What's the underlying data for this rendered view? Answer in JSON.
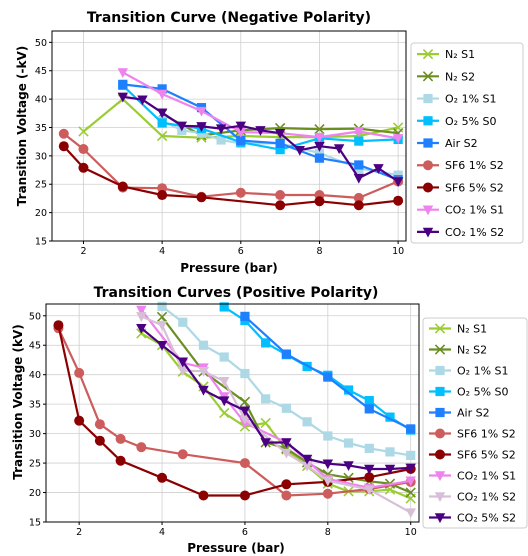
{
  "chart_data": [
    {
      "type": "line",
      "title": "Transition Curve (Negative Polarity)",
      "xlabel": "Pressure (bar)",
      "ylabel": "Transition Voltage (-kV)",
      "xlim": [
        1.2,
        10.2
      ],
      "ylim": [
        15,
        52
      ],
      "xticks": [
        2,
        4,
        6,
        8,
        10
      ],
      "yticks": [
        15,
        20,
        25,
        30,
        35,
        40,
        45,
        50
      ],
      "grid": true,
      "legend": "right-outside",
      "series": [
        {
          "name": "N₂ S1",
          "color": "#9acd32",
          "marker": "x",
          "x": [
            2,
            3,
            4,
            5,
            6,
            7,
            8,
            9,
            10
          ],
          "y": [
            34.3,
            40,
            33.5,
            33.2,
            33.5,
            33.3,
            33.3,
            33.5,
            35
          ]
        },
        {
          "name": "N₂ S2",
          "color": "#6b8e23",
          "marker": "x",
          "x": [
            4,
            5,
            6,
            7,
            8,
            9,
            10
          ],
          "y": [
            37.4,
            33.6,
            34.5,
            34.9,
            34.7,
            34.8,
            34
          ]
        },
        {
          "name": "O₂ 1% S1",
          "color": "#add8e6",
          "marker": "s",
          "x": [
            4,
            4.5,
            5,
            5.5,
            6,
            7,
            8,
            9,
            10
          ],
          "y": [
            36.2,
            34.5,
            34,
            32.8,
            32.2,
            32.2,
            30.5,
            27.8,
            26.6
          ]
        },
        {
          "name": "O₂ 5% S0",
          "color": "#00bfff",
          "marker": "s",
          "x": [
            3,
            4,
            5,
            6,
            7,
            8,
            9,
            10
          ],
          "y": [
            42.4,
            35.8,
            34.8,
            32.4,
            31.1,
            33.1,
            32.6,
            32.9
          ]
        },
        {
          "name": "Air S2",
          "color": "#1e7fff",
          "marker": "s",
          "x": [
            3,
            4,
            5,
            6,
            7,
            8,
            9,
            10
          ],
          "y": [
            42.6,
            41.8,
            38.5,
            32.7,
            32.2,
            29.6,
            28.4,
            25.8
          ]
        },
        {
          "name": "SF6 1% S2",
          "color": "#cd5c5c",
          "marker": "o",
          "x": [
            1.5,
            2,
            3,
            4,
            5,
            6,
            7,
            8,
            9,
            10
          ],
          "y": [
            33.9,
            31.2,
            24.4,
            24.3,
            22.8,
            23.5,
            23.1,
            23.1,
            22.6,
            25.5
          ]
        },
        {
          "name": "SF6 5% S2",
          "color": "#8b0000",
          "marker": "o",
          "x": [
            1.5,
            2,
            3,
            4,
            5,
            7,
            8,
            9,
            10
          ],
          "y": [
            31.7,
            27.9,
            24.6,
            23.1,
            22.7,
            21.3,
            22,
            21.3,
            22.1
          ]
        },
        {
          "name": "CO₂ 1% S1",
          "color": "#ee82ee",
          "marker": "v",
          "x": [
            3,
            4,
            5,
            6,
            7,
            8,
            9,
            10
          ],
          "y": [
            44.7,
            40.9,
            37.9,
            34.2,
            34,
            33.3,
            34.3,
            33.1
          ]
        },
        {
          "name": "CO₂ 1% S2",
          "color": "#4b0082",
          "marker": "v",
          "x": [
            3,
            3.5,
            4,
            4.5,
            5,
            5.5,
            6,
            6.5,
            7,
            7.5,
            8,
            8.5,
            9,
            9.5,
            10
          ],
          "y": [
            40.4,
            39.9,
            37.6,
            35.3,
            35.2,
            34.8,
            35.3,
            34.5,
            34,
            31,
            31.7,
            31.3,
            26.1,
            27.8,
            25.5
          ]
        }
      ]
    },
    {
      "type": "line",
      "title": "Transition Curves (Positive Polarity)",
      "xlabel": "Pressure (bar)",
      "ylabel": "Transition Voltage (kV)",
      "xlim": [
        1.2,
        10.2
      ],
      "ylim": [
        15,
        52
      ],
      "xticks": [
        2,
        4,
        6,
        8,
        10
      ],
      "yticks": [
        15,
        20,
        25,
        30,
        35,
        40,
        45,
        50
      ],
      "grid": true,
      "legend": "right-outside",
      "series": [
        {
          "name": "N₂ S1",
          "color": "#9acd32",
          "marker": "x",
          "x": [
            3.5,
            4,
            4.5,
            5,
            5.5,
            6,
            6.5,
            7,
            7.5,
            8,
            8.5,
            9,
            9.5,
            10
          ],
          "y": [
            47,
            45,
            40.5,
            38,
            33.5,
            31.2,
            31.8,
            27.3,
            24.5,
            21.5,
            20.2,
            20.2,
            20.5,
            19
          ]
        },
        {
          "name": "N₂ S2",
          "color": "#6b8e23",
          "marker": "x",
          "x": [
            4,
            5,
            6,
            6.5,
            7,
            7.5,
            8,
            8.5,
            9,
            9.5,
            10
          ],
          "y": [
            49.8,
            40.5,
            35.4,
            28.5,
            27.5,
            25.1,
            23.1,
            22.5,
            21.9,
            21.5,
            20
          ]
        },
        {
          "name": "O₂ 1% S1",
          "color": "#add8e6",
          "marker": "s",
          "x": [
            4,
            4.5,
            5,
            5.5,
            6,
            6.5,
            7,
            7.5,
            8,
            8.5,
            9,
            9.5,
            10
          ],
          "y": [
            51.6,
            48.9,
            45,
            43,
            40.2,
            35.9,
            34.3,
            32,
            29.6,
            28.4,
            27.5,
            26.9,
            26.3
          ]
        },
        {
          "name": "O₂ 5% S0",
          "color": "#00bfff",
          "marker": "s",
          "x": [
            5.5,
            6,
            6.5,
            7,
            7.5,
            8,
            8.5,
            9,
            9.5,
            10
          ],
          "y": [
            51.5,
            49.2,
            45.4,
            43.4,
            41.4,
            39.9,
            37.4,
            35.6,
            32.8,
            30.6
          ]
        },
        {
          "name": "Air S2",
          "color": "#1e7fff",
          "marker": "s",
          "x": [
            6,
            7,
            8,
            9,
            10
          ],
          "y": [
            49.9,
            43.5,
            39.6,
            34.2,
            30.8
          ]
        },
        {
          "name": "SF6 1% S2",
          "color": "#cd5c5c",
          "marker": "o",
          "x": [
            1.5,
            2,
            2.5,
            3,
            3.5,
            4.5,
            6,
            7,
            8,
            9,
            10
          ],
          "y": [
            47.9,
            40.3,
            31.6,
            29.1,
            27.7,
            26.5,
            25,
            19.5,
            19.8,
            20.6,
            21.8
          ]
        },
        {
          "name": "SF6 5% S2",
          "color": "#8b0000",
          "marker": "o",
          "x": [
            1.5,
            2,
            2.5,
            3,
            4,
            5,
            6,
            7,
            8,
            9,
            10
          ],
          "y": [
            48.4,
            32.2,
            28.8,
            25.4,
            22.5,
            19.5,
            19.5,
            21.4,
            21.8,
            22.6,
            24
          ]
        },
        {
          "name": "CO₂ 1% S1",
          "color": "#ee82ee",
          "marker": "v",
          "x": [
            3.5,
            4.5,
            5,
            5.5,
            6,
            7,
            8,
            9,
            10
          ],
          "y": [
            51,
            42,
            41.2,
            36.3,
            31.8,
            28.5,
            22.3,
            20.8,
            22
          ]
        },
        {
          "name": "CO₂ 1% S2",
          "color": "#d8bfd8",
          "marker": "v",
          "x": [
            3.5,
            4,
            4.5,
            5,
            5.5,
            6,
            7,
            7.5,
            8,
            9,
            10
          ],
          "y": [
            49.9,
            48.4,
            40.7,
            40.6,
            38.9,
            32.5,
            26.7,
            24.5,
            22,
            20.5,
            16.6
          ]
        },
        {
          "name": "CO₂ 5% S2",
          "color": "#4b0082",
          "marker": "v",
          "x": [
            3.5,
            4,
            4.5,
            5,
            5.5,
            6,
            6.5,
            7,
            7.5,
            8,
            8.5,
            9,
            9.5,
            10
          ],
          "y": [
            47.9,
            45,
            42.2,
            37.4,
            35.6,
            33.9,
            28.5,
            28.5,
            25.7,
            24.9,
            24.6,
            24,
            24,
            24.2
          ]
        }
      ]
    }
  ]
}
